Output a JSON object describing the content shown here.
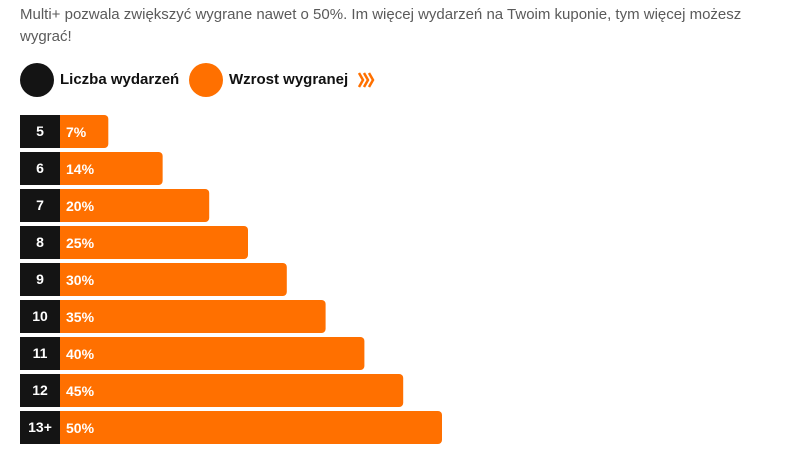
{
  "chart_data": {
    "type": "bar",
    "orientation": "horizontal",
    "subtitle": "Multi+ pozwala zwiększyć wygrane nawet o 50%. Im więcej wydarzeń na Twoim kuponie, tym więcej możesz wygrać!",
    "category_legend": {
      "name": "Liczba wydarzeń",
      "color": "#141414"
    },
    "categories": [
      "5",
      "6",
      "7",
      "8",
      "9",
      "10",
      "11",
      "12",
      "13+"
    ],
    "series": [
      {
        "name": "Wzrost wygranej",
        "color": "#ff7000",
        "values": [
          7,
          14,
          20,
          25,
          30,
          35,
          40,
          45,
          50
        ],
        "value_labels": [
          "7%",
          "14%",
          "20%",
          "25%",
          "30%",
          "35%",
          "40%",
          "45%",
          "50%"
        ]
      }
    ]
  }
}
